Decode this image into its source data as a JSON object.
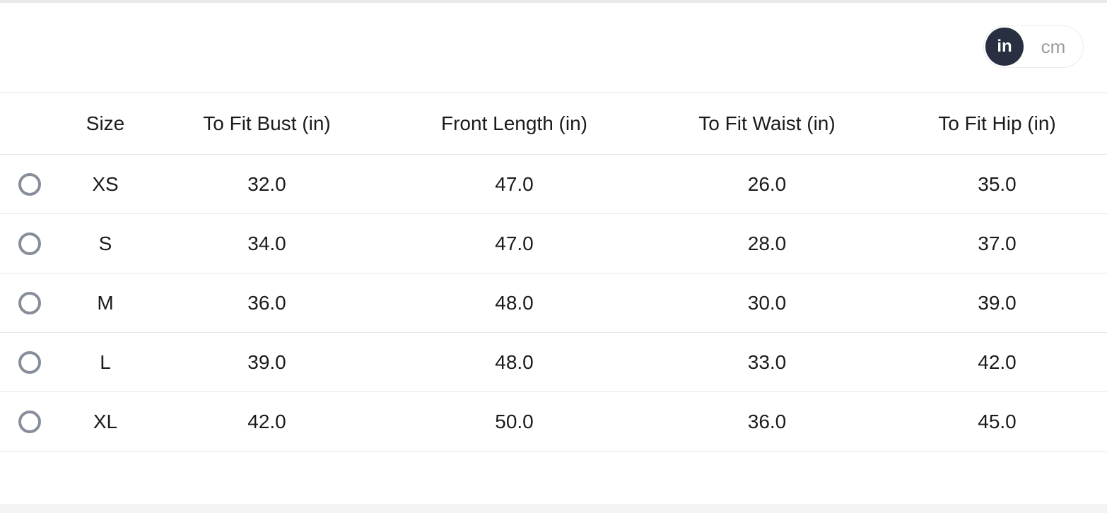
{
  "unit_toggle": {
    "options": [
      {
        "label": "in",
        "selected": true
      },
      {
        "label": "cm",
        "selected": false
      }
    ]
  },
  "table": {
    "columns": [
      "Size",
      "To Fit Bust (in)",
      "Front Length (in)",
      "To Fit Waist (in)",
      "To Fit Hip (in)"
    ],
    "rows": [
      {
        "size": "XS",
        "bust": "32.0",
        "front_length": "47.0",
        "waist": "26.0",
        "hip": "35.0",
        "selected": false
      },
      {
        "size": "S",
        "bust": "34.0",
        "front_length": "47.0",
        "waist": "28.0",
        "hip": "37.0",
        "selected": false
      },
      {
        "size": "M",
        "bust": "36.0",
        "front_length": "48.0",
        "waist": "30.0",
        "hip": "39.0",
        "selected": false
      },
      {
        "size": "L",
        "bust": "39.0",
        "front_length": "48.0",
        "waist": "33.0",
        "hip": "42.0",
        "selected": false
      },
      {
        "size": "XL",
        "bust": "42.0",
        "front_length": "50.0",
        "waist": "36.0",
        "hip": "45.0",
        "selected": false
      }
    ]
  },
  "colors": {
    "accent_dark": "#272f40",
    "inactive_text": "#9b9b9b",
    "divider": "#e7e7e7",
    "radio_border": "#878e9a",
    "text": "#1b1b1b"
  }
}
